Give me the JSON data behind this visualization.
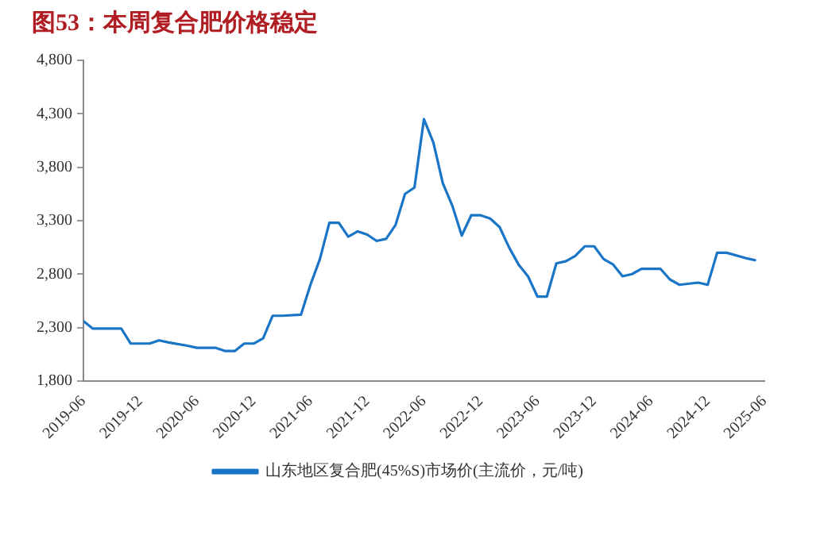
{
  "chart_data": {
    "type": "line",
    "title": "图53：本周复合肥价格稳定",
    "x": [
      "2019-06",
      "2019-07",
      "2019-10",
      "2019-11",
      "2019-12",
      "2020-01",
      "2020-02",
      "2020-03",
      "2020-05",
      "2020-06",
      "2020-08",
      "2020-09",
      "2020-10",
      "2020-11",
      "2020-12",
      "2021-01",
      "2021-02",
      "2021-03",
      "2021-05",
      "2021-06",
      "2021-07",
      "2021-08",
      "2021-09",
      "2021-10",
      "2021-11",
      "2021-12",
      "2022-01",
      "2022-02",
      "2022-03",
      "2022-04",
      "2022-05",
      "2022-06",
      "2022-07",
      "2022-08",
      "2022-09",
      "2022-10",
      "2022-11",
      "2022-12",
      "2023-01",
      "2023-02",
      "2023-03",
      "2023-04",
      "2023-05",
      "2023-06",
      "2023-07",
      "2023-08",
      "2023-09",
      "2023-10",
      "2023-11",
      "2023-12",
      "2024-01",
      "2024-02",
      "2024-03",
      "2024-04",
      "2024-05",
      "2024-07",
      "2024-08",
      "2024-09",
      "2024-11",
      "2024-12",
      "2025-01",
      "2025-02",
      "2025-04",
      "2025-05"
    ],
    "series": [
      {
        "name": "山东地区复合肥(45%S)市场价(主流价，元/吨)",
        "color": "#1a75c6",
        "values": [
          2360,
          2290,
          2290,
          2150,
          2150,
          2150,
          2180,
          2160,
          2130,
          2110,
          2110,
          2080,
          2080,
          2150,
          2150,
          2200,
          2410,
          2410,
          2420,
          2700,
          2940,
          3280,
          3280,
          3150,
          3200,
          3170,
          3110,
          3130,
          3260,
          3550,
          3610,
          4250,
          4030,
          3650,
          3440,
          3160,
          3350,
          3350,
          3320,
          3240,
          3050,
          2890,
          2780,
          2590,
          2590,
          2900,
          2920,
          2970,
          3060,
          3060,
          2940,
          2890,
          2780,
          2800,
          2850,
          2850,
          2750,
          2700,
          2720,
          2700,
          3000,
          3000,
          2950,
          2930
        ]
      }
    ],
    "xlim": [
      "2019-06",
      "2025-06"
    ],
    "xticks": [
      "2019-06",
      "2019-12",
      "2020-06",
      "2020-12",
      "2021-06",
      "2021-12",
      "2022-06",
      "2022-12",
      "2023-06",
      "2023-12",
      "2024-06",
      "2024-12",
      "2025-06"
    ],
    "ylim": [
      1800,
      4800
    ],
    "yticks": [
      {
        "value": 1800,
        "label": "1,800"
      },
      {
        "value": 2300,
        "label": "2,300"
      },
      {
        "value": 2800,
        "label": "2,800"
      },
      {
        "value": 3300,
        "label": "3,300"
      },
      {
        "value": 3800,
        "label": "3,800"
      },
      {
        "value": 4300,
        "label": "4,300"
      },
      {
        "value": 4800,
        "label": "4,800"
      }
    ],
    "grid": false,
    "legend": "bottom",
    "marker": "none",
    "line_style": "solid"
  }
}
